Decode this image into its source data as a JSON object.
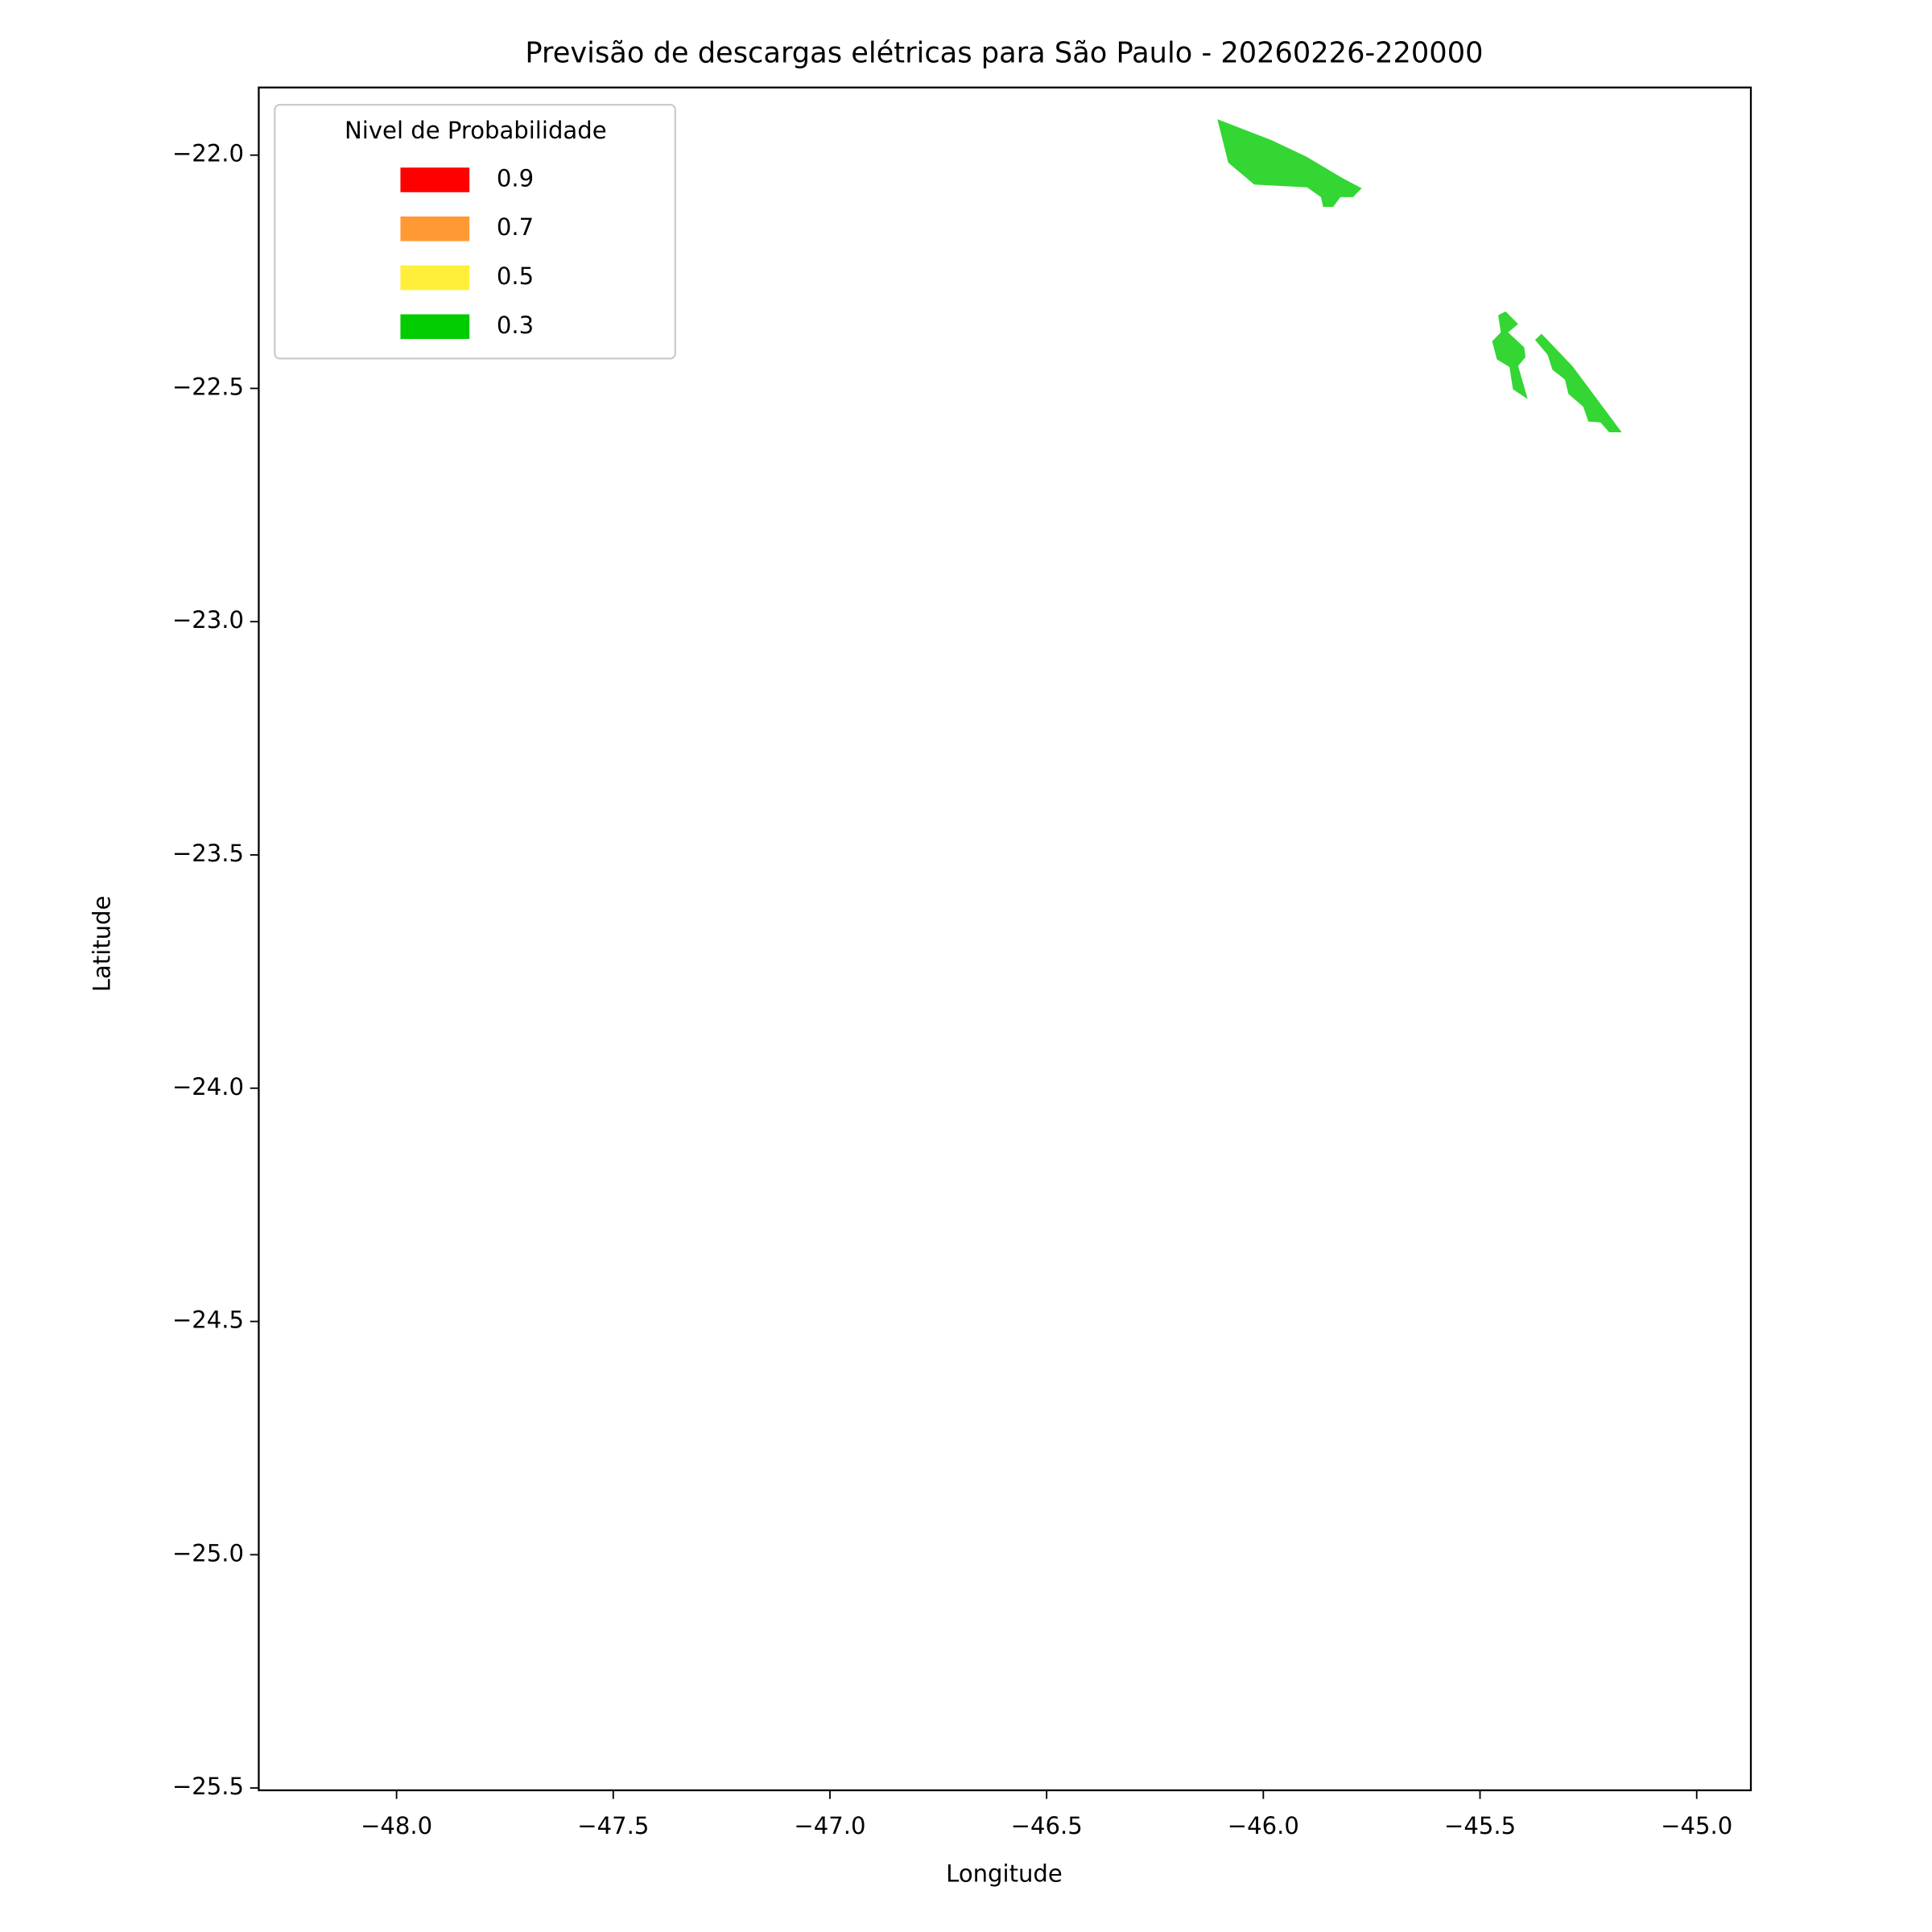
{
  "chart_data": {
    "type": "polygon",
    "title": "Previsão de descargas elétricas para São Paulo - 20260226-220000",
    "x_label": "Longitude",
    "y_label": "Latitude",
    "legend_title": "Nivel de Probabilidade",
    "legend_position": "upper left",
    "fill_opacity": 0.8,
    "xlim": [
      -48.318,
      -44.875
    ],
    "ylim": [
      -25.505,
      -21.855
    ],
    "xticks": [
      {
        "value": -48.0,
        "label": "−48.0"
      },
      {
        "value": -47.5,
        "label": "−47.5"
      },
      {
        "value": -47.0,
        "label": "−47.0"
      },
      {
        "value": -46.5,
        "label": "−46.5"
      },
      {
        "value": -46.0,
        "label": "−46.0"
      },
      {
        "value": -45.5,
        "label": "−45.5"
      },
      {
        "value": -45.0,
        "label": "−45.0"
      }
    ],
    "yticks": [
      {
        "value": -22.0,
        "label": "−22.0"
      },
      {
        "value": -22.5,
        "label": "−22.5"
      },
      {
        "value": -23.0,
        "label": "−23.0"
      },
      {
        "value": -23.5,
        "label": "−23.5"
      },
      {
        "value": -24.0,
        "label": "−24.0"
      },
      {
        "value": -24.5,
        "label": "−24.5"
      },
      {
        "value": -25.0,
        "label": "−25.0"
      },
      {
        "value": -25.5,
        "label": "−25.5"
      }
    ],
    "series": [
      {
        "name": "0.9",
        "color": "#ff0000"
      },
      {
        "name": "0.7",
        "color": "#ff9933"
      },
      {
        "name": "0.5",
        "color": "#ffef3a"
      },
      {
        "name": "0.3",
        "color": "#00cc00",
        "polygons": [
          {
            "x": [
              -46.106,
              -46.081,
              -46.021,
              -45.899,
              -45.867,
              -45.862,
              -45.839,
              -45.822,
              -45.793,
              -45.773,
              -45.816,
              -45.901,
              -45.981
            ],
            "y": [
              -21.923,
              -22.016,
              -22.063,
              -22.069,
              -22.09,
              -22.111,
              -22.111,
              -22.09,
              -22.09,
              -22.071,
              -22.05,
              -22.003,
              -21.968
            ]
          },
          {
            "x": [
              -45.458,
              -45.441,
              -45.412,
              -45.435,
              -45.398,
              -45.395,
              -45.412,
              -45.39,
              -45.424,
              -45.432,
              -45.461,
              -45.472,
              -45.452
            ],
            "y": [
              -22.343,
              -22.335,
              -22.362,
              -22.38,
              -22.412,
              -22.433,
              -22.452,
              -22.523,
              -22.502,
              -22.454,
              -22.438,
              -22.399,
              -22.38
            ]
          },
          {
            "x": [
              -45.373,
              -45.358,
              -45.287,
              -45.173,
              -45.202,
              -45.222,
              -45.25,
              -45.262,
              -45.296,
              -45.304,
              -45.333,
              -45.344
            ],
            "y": [
              -22.396,
              -22.383,
              -22.452,
              -22.594,
              -22.594,
              -22.573,
              -22.571,
              -22.539,
              -22.512,
              -22.481,
              -22.46,
              -22.428
            ]
          }
        ]
      }
    ]
  }
}
